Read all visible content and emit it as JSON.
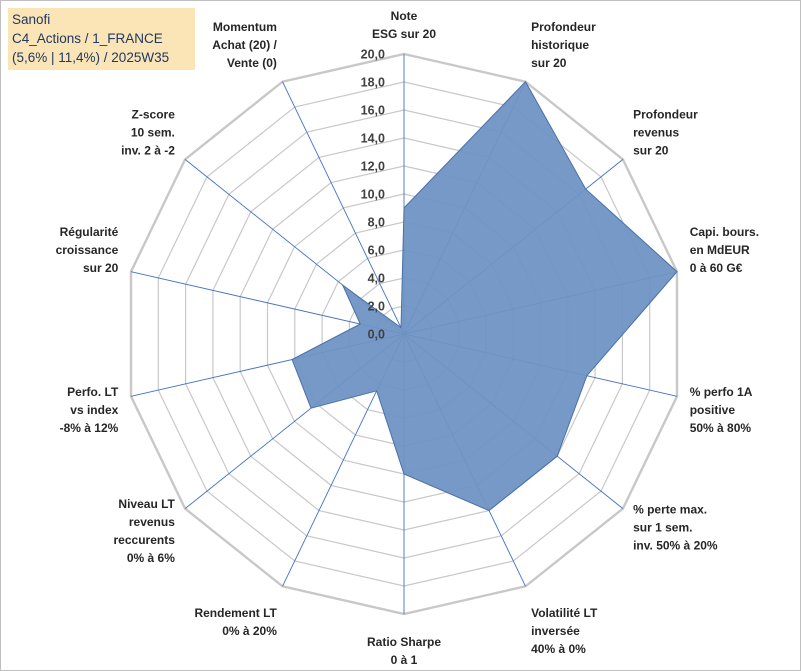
{
  "title_box": {
    "line1": "Sanofi",
    "line2": "C4_Actions / 1_FRANCE",
    "line3": "(5,6% | 11,4%) / 2025W35"
  },
  "chart_data": {
    "type": "radar",
    "range": [
      0,
      20
    ],
    "tick_step": 2,
    "tick_labels": [
      "0,0",
      "2,0",
      "4,0",
      "6,0",
      "8,0",
      "10,0",
      "12,0",
      "14,0",
      "16,0",
      "18,0",
      "20,0"
    ],
    "grid": true,
    "colors": {
      "fill": "#6f93c4",
      "stroke": "#4a70a8",
      "grid": "#c8c8c8",
      "spoke": "#4472c4",
      "title_bg": "#fbe5b6",
      "title_text": "#1f3864"
    },
    "axes": [
      {
        "label": [
          "Note",
          "ESG sur 20"
        ],
        "value": 9.0
      },
      {
        "label": [
          "Profondeur",
          "historique",
          "sur 20"
        ],
        "value": 20.0
      },
      {
        "label": [
          "Profondeur",
          "revenus",
          "sur 20"
        ],
        "value": 16.6
      },
      {
        "label": [
          "Capi. bours.",
          "en MdEUR",
          "0 à 60 G€"
        ],
        "value": 20.0
      },
      {
        "label": [
          "% perfo 1A",
          "positive",
          "50% à 80%"
        ],
        "value": 13.4
      },
      {
        "label": [
          "% perte max.",
          "sur 1 sem.",
          "inv. 50% à 20%"
        ],
        "value": 14.0
      },
      {
        "label": [
          "Volatilité LT",
          "inversée",
          "40% à 0%"
        ],
        "value": 14.0
      },
      {
        "label": [
          "Ratio Sharpe",
          "0 à 1"
        ],
        "value": 10.0
      },
      {
        "label": [
          "Rendement LT",
          "0% à 20%"
        ],
        "value": 4.5
      },
      {
        "label": [
          "Niveau LT",
          "revenus",
          "reccurents",
          "0% à 6%"
        ],
        "value": 8.5
      },
      {
        "label": [
          "Perfo. LT",
          "vs index",
          "-8% à 12%"
        ],
        "value": 8.2
      },
      {
        "label": [
          "Régularité",
          "croissance",
          "sur 20"
        ],
        "value": 3.2
      },
      {
        "label": [
          "Z-score",
          "10 sem.",
          "inv. 2 à -2"
        ],
        "value": 5.6
      },
      {
        "label": [
          "Momentum",
          "Achat (20) /",
          "Vente (0)"
        ],
        "value": 0.5
      }
    ]
  }
}
